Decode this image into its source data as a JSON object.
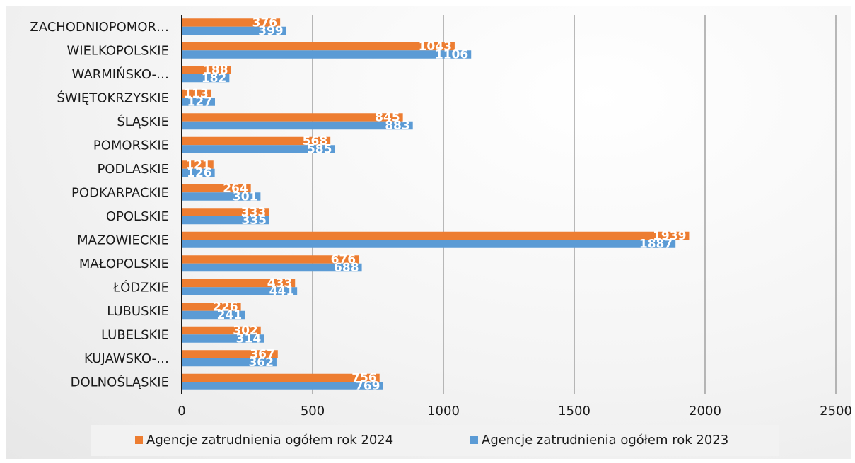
{
  "chart_data": {
    "type": "bar",
    "orientation": "horizontal",
    "title": "",
    "xlabel": "",
    "ylabel": "",
    "xlim": [
      0,
      2500
    ],
    "x_ticks": [
      0,
      500,
      1000,
      1500,
      2000,
      2500
    ],
    "grid": "vertical",
    "legend_position": "bottom",
    "categories": [
      "DOLNOŚLĄSKIE",
      "KUJAWSKO-…",
      "LUBELSKIE",
      "LUBUSKIE",
      "ŁÓDZKIE",
      "MAŁOPOLSKIE",
      "MAZOWIECKIE",
      "OPOLSKIE",
      "PODKARPACKIE",
      "PODLASKIE",
      "POMORSKIE",
      "ŚLĄSKIE",
      "ŚWIĘTOKRZYSKIE",
      "WARMIŃSKO-…",
      "WIELKOPOLSKIE",
      "ZACHODNIOPOMOR…"
    ],
    "series": [
      {
        "name": "Agencje zatrudnienia ogółem rok 2024",
        "color": "#ED7D31",
        "values": [
          756,
          367,
          302,
          226,
          433,
          676,
          1939,
          333,
          264,
          121,
          568,
          845,
          113,
          188,
          1043,
          376
        ]
      },
      {
        "name": "Agencje zatrudnienia ogółem rok 2023",
        "color": "#5B9BD5",
        "values": [
          769,
          362,
          314,
          241,
          441,
          688,
          1887,
          335,
          301,
          126,
          585,
          883,
          127,
          182,
          1106,
          399
        ]
      }
    ]
  }
}
